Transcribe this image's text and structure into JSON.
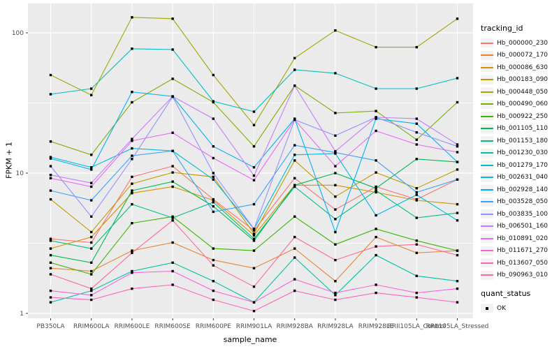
{
  "chart_data": {
    "type": "line",
    "title": "",
    "xlabel": "sample_name",
    "ylabel": "FPKM + 1",
    "y_scale": "log10",
    "ylim": [
      1,
      170
    ],
    "y_major_ticks": [
      1,
      10,
      100
    ],
    "y_tick_labels": [
      "1",
      "10",
      "100"
    ],
    "y_minor_breaks": [
      3.1623,
      31.623
    ],
    "grid": "on",
    "legend_position": "right",
    "panel_background": "#EBEBEB",
    "grid_color": "#FFFFFF",
    "point_color": "#000000",
    "axis_text_color": "#4D4D4D",
    "categories": [
      "PB350LA",
      "RRIM600LA",
      "RRIM600LE",
      "RRIM600SE",
      "RRIM600PE",
      "RRIM901LA",
      "RRIM928BA",
      "RRIM928LA",
      "RRIM928LE",
      "RRII105LA_Control",
      "RRII105LA_Stressed"
    ],
    "legend": {
      "tracking_title": "tracking_id",
      "quant_title": "quant_status",
      "quant_status_label": "OK"
    },
    "series": [
      {
        "name": "Hb_000000_230",
        "color": "#F8766D",
        "values": [
          3.4,
          3.2,
          9.4,
          11.2,
          6.5,
          3.9,
          9.2,
          5.5,
          8.0,
          6.5,
          9.0
        ]
      },
      {
        "name": "Hb_000072_170",
        "color": "#EA8331",
        "values": [
          2.1,
          2.0,
          2.8,
          3.2,
          2.4,
          2.1,
          2.9,
          1.7,
          3.5,
          2.7,
          2.8
        ]
      },
      {
        "name": "Hb_000086_630",
        "color": "#D89000",
        "values": [
          2.9,
          3.5,
          7.2,
          8.0,
          6.4,
          3.6,
          8.2,
          8.2,
          7.3,
          6.4,
          6.0
        ]
      },
      {
        "name": "Hb_000183_090",
        "color": "#C09B00",
        "values": [
          6.5,
          3.8,
          8.4,
          10.1,
          9.4,
          3.7,
          12.3,
          6.8,
          10.1,
          7.8,
          10.6
        ]
      },
      {
        "name": "Hb_000448_050",
        "color": "#A3A500",
        "values": [
          50,
          36,
          129,
          126,
          50,
          22,
          66,
          104,
          79,
          79,
          126
        ]
      },
      {
        "name": "Hb_000490_060",
        "color": "#7CAE00",
        "values": [
          16.8,
          13.5,
          32,
          47,
          32,
          15.5,
          42,
          26.8,
          27.7,
          17.3,
          32
        ]
      },
      {
        "name": "Hb_000922_250",
        "color": "#39B600",
        "values": [
          2.3,
          1.9,
          4.4,
          4.9,
          2.9,
          2.8,
          4.9,
          3.1,
          4.0,
          3.3,
          2.8
        ]
      },
      {
        "name": "Hb_001105_110",
        "color": "#00BB4E",
        "values": [
          2.6,
          2.3,
          7.5,
          8.7,
          5.8,
          3.3,
          8.2,
          10.0,
          7.8,
          12.6,
          12.0
        ]
      },
      {
        "name": "Hb_001153_180",
        "color": "#00BF7D",
        "values": [
          3.3,
          2.9,
          6.0,
          4.8,
          6.2,
          3.4,
          8.0,
          4.7,
          7.5,
          4.8,
          5.2
        ]
      },
      {
        "name": "Hb_001230_030",
        "color": "#00C1A3",
        "values": [
          1.2,
          1.45,
          2.0,
          2.3,
          1.7,
          1.2,
          2.5,
          1.35,
          2.6,
          1.85,
          1.7
        ]
      },
      {
        "name": "Hb_001279_170",
        "color": "#00BFC4",
        "values": [
          36.5,
          40,
          77,
          76,
          32.5,
          27.4,
          54.5,
          51.5,
          40,
          40,
          47.5
        ]
      },
      {
        "name": "Hb_002631_040",
        "color": "#00BAE0",
        "values": [
          13.0,
          11.0,
          15.0,
          14.4,
          9.0,
          4.0,
          13.5,
          13.8,
          5.0,
          7.0,
          4.6
        ]
      },
      {
        "name": "Hb_002928_140",
        "color": "#00B0F6",
        "values": [
          12.7,
          10.6,
          37.9,
          35.2,
          15.5,
          11.0,
          24.4,
          3.8,
          24.4,
          22.5,
          12.0
        ]
      },
      {
        "name": "Hb_003528_050",
        "color": "#35A2FF",
        "values": [
          7.5,
          6.4,
          13.3,
          14.4,
          5.3,
          6.0,
          15.8,
          14.0,
          12.3,
          7.3,
          9.0
        ]
      },
      {
        "name": "Hb_003835_100",
        "color": "#9590FF",
        "values": [
          11.2,
          4.9,
          12.6,
          35.0,
          10.0,
          4.0,
          24.0,
          18.5,
          25.0,
          19.5,
          15.5
        ]
      },
      {
        "name": "Hb_006501_160",
        "color": "#C77CFF",
        "values": [
          9.7,
          8.5,
          17.5,
          35.2,
          24.4,
          9.6,
          42.0,
          14.3,
          25.0,
          24.4,
          16.0
        ]
      },
      {
        "name": "Hb_010891_020",
        "color": "#E76BF3",
        "values": [
          9.2,
          8.0,
          17.0,
          19.4,
          12.8,
          8.9,
          24.0,
          11.2,
          20.0,
          16.0,
          14.1
        ]
      },
      {
        "name": "Hb_011671_270",
        "color": "#FA62DB",
        "values": [
          1.45,
          1.35,
          1.95,
          2.0,
          1.45,
          1.2,
          1.75,
          1.4,
          1.6,
          1.4,
          1.5
        ]
      },
      {
        "name": "Hb_013607_050",
        "color": "#FF62BC",
        "values": [
          1.3,
          1.25,
          1.5,
          1.6,
          1.25,
          1.04,
          1.45,
          1.25,
          1.4,
          1.3,
          1.2
        ]
      },
      {
        "name": "Hb_090963_010",
        "color": "#FF6A98",
        "values": [
          1.9,
          1.5,
          2.7,
          4.6,
          2.2,
          1.55,
          3.5,
          2.4,
          3.0,
          3.1,
          2.6
        ]
      }
    ]
  }
}
